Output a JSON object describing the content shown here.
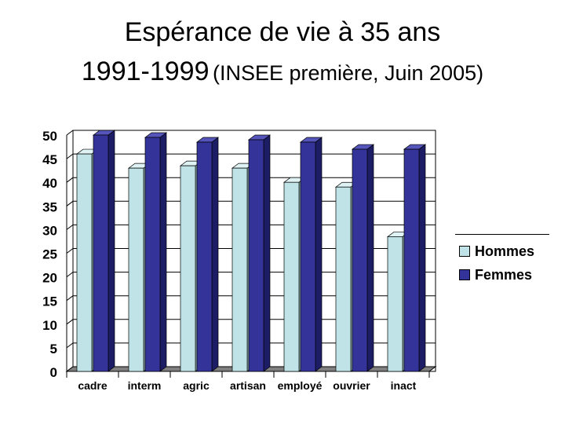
{
  "title": {
    "line1": "Espérance de vie à 35 ans",
    "line2_main": "1991-1999",
    "line2_sub": "(INSEE première, Juin 2005)"
  },
  "colors": {
    "hommes": "#bfe3e6",
    "femmes": "#333399",
    "femmes_side": "#1d1d66",
    "femmes_top": "#5555bb",
    "hommes_side": "#8fb1b4",
    "hommes_top": "#dff2f4",
    "floor": "#808080"
  },
  "chart_data": {
    "type": "bar",
    "title": "Espérance de vie à 35 ans 1991-1999 (INSEE première, Juin 2005)",
    "categories": [
      "cadre",
      "interm",
      "agric",
      "artisan",
      "employé",
      "ouvrier",
      "inact"
    ],
    "series": [
      {
        "name": "Hommes",
        "values": [
          46,
          43,
          43.5,
          43,
          40,
          39,
          28.5
        ]
      },
      {
        "name": "Femmes",
        "values": [
          50,
          49.5,
          48.5,
          49,
          48.5,
          47,
          47
        ]
      }
    ],
    "yticks": [
      "0",
      "5",
      "10",
      "15",
      "20",
      "25",
      "30",
      "35",
      "40",
      "45",
      "50"
    ],
    "ylim": [
      0,
      50
    ],
    "grid": true,
    "legend": "right"
  }
}
